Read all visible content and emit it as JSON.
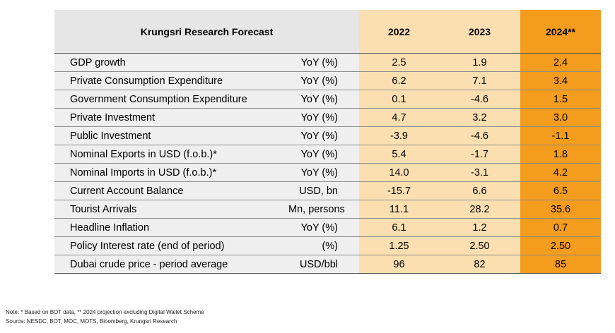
{
  "table": {
    "title": "Krungsri Research Forecast",
    "years": [
      "2022",
      "2023",
      "2024**"
    ],
    "rows": [
      {
        "label": "GDP growth",
        "unit": "YoY (%)",
        "values": [
          "2.5",
          "1.9",
          "2.4"
        ]
      },
      {
        "label": "Private Consumption Expenditure",
        "unit": "YoY (%)",
        "values": [
          "6.2",
          "7.1",
          "3.4"
        ]
      },
      {
        "label": "Government Consumption Expenditure",
        "unit": "YoY (%)",
        "values": [
          "0.1",
          "-4.6",
          "1.5"
        ]
      },
      {
        "label": "Private Investment",
        "unit": "YoY (%)",
        "values": [
          "4.7",
          "3.2",
          "3.0"
        ]
      },
      {
        "label": "Public Investment",
        "unit": "YoY (%)",
        "values": [
          "-3.9",
          "-4.6",
          "-1.1"
        ]
      },
      {
        "label": "Nominal Exports in USD (f.o.b.)*",
        "unit": "YoY (%)",
        "values": [
          "5.4",
          "-1.7",
          "1.8"
        ]
      },
      {
        "label": "Nominal Imports in USD (f.o.b.)*",
        "unit": "YoY (%)",
        "values": [
          "14.0",
          "-3.1",
          "4.2"
        ]
      },
      {
        "label": "Current Account Balance",
        "unit": "USD, bn",
        "values": [
          "-15.7",
          "6.6",
          "6.5"
        ]
      },
      {
        "label": "Tourist Arrivals",
        "unit": "Mn, persons",
        "values": [
          "11.1",
          "28.2",
          "35.6"
        ]
      },
      {
        "label": "Headline Inflation",
        "unit": "YoY (%)",
        "values": [
          "6.1",
          "1.2",
          "0.7"
        ]
      },
      {
        "label": "Policy Interest rate (end of period)",
        "unit": "(%)",
        "values": [
          "1.25",
          "2.50",
          "2.50"
        ]
      },
      {
        "label": "Dubai crude price - period average",
        "unit": "USD/bbl",
        "values": [
          "96",
          "82",
          "85"
        ]
      }
    ]
  },
  "notes": {
    "note": "Note: * Based on BOT data, ** 2024 projection excluding Digital Wallet Scheme",
    "source": "Source: NESDC, BOT, MOC, MOTS, Bloomberg, Krungsri Research"
  },
  "colors": {
    "label_bg": "#efefef",
    "header_title_bg": "#e6e6e6",
    "forecast_light": "#fbdfb1",
    "forecast_accent": "#f39c1e"
  }
}
